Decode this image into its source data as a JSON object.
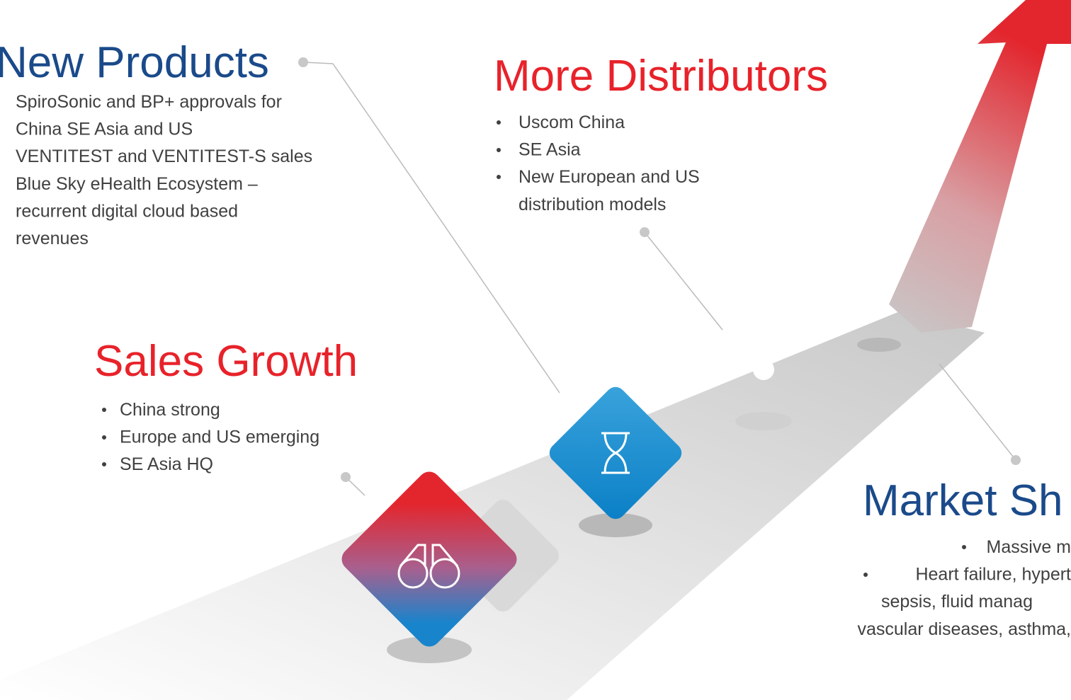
{
  "new_products": {
    "title": "New Products",
    "lines": [
      "SpiroSonic and BP+ approvals for",
      "China SE Asia and US",
      "VENTITEST and VENTITEST-S sales",
      "Blue Sky eHealth Ecosystem –",
      "recurrent digital cloud based",
      "revenues"
    ]
  },
  "more_distributors": {
    "title": "More Distributors",
    "lines": [
      "Uscom China",
      "SE Asia",
      "New European and US",
      "distribution models"
    ]
  },
  "sales_growth": {
    "title": "Sales Growth",
    "lines": [
      "China strong",
      "Europe and US emerging",
      "SE Asia HQ"
    ]
  },
  "market_share": {
    "title": "Market Sh",
    "lines": [
      "Massive m",
      "Heart failure, hypert",
      "sepsis, fluid manag",
      "vascular diseases, asthma,"
    ]
  }
}
